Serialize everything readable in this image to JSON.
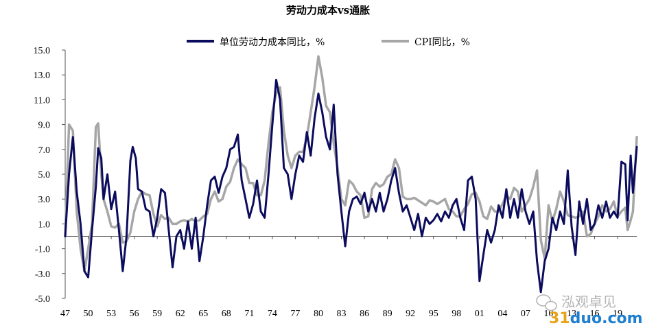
{
  "chart_data": {
    "type": "line",
    "title": "劳动力成本vs通胀",
    "xlabel": "",
    "ylabel": "",
    "ylim": [
      -5.0,
      15.0
    ],
    "yticks": [
      "15.0",
      "13.0",
      "11.0",
      "9.0",
      "7.0",
      "5.0",
      "3.0",
      "1.0",
      "-1.0",
      "-3.0",
      "-5.0"
    ],
    "xlim": [
      1947,
      2021.5
    ],
    "xticks": [
      "47",
      "50",
      "53",
      "56",
      "59",
      "62",
      "65",
      "68",
      "71",
      "74",
      "77",
      "80",
      "83",
      "86",
      "89",
      "92",
      "95",
      "98",
      "01",
      "04",
      "07",
      "10",
      "13",
      "16",
      "19"
    ],
    "legend_position": "top",
    "grid": false,
    "series": [
      {
        "name": "单位劳动力成本同比，%",
        "color": "#0c0c5e",
        "points": [
          [
            1947.0,
            0.0
          ],
          [
            1947.5,
            5.0
          ],
          [
            1948.0,
            8.0
          ],
          [
            1948.5,
            3.6
          ],
          [
            1949.0,
            1.0
          ],
          [
            1949.5,
            -2.8
          ],
          [
            1950.0,
            -3.3
          ],
          [
            1950.5,
            0.5
          ],
          [
            1951.0,
            4.0
          ],
          [
            1951.3,
            7.1
          ],
          [
            1951.7,
            6.3
          ],
          [
            1952.0,
            3.0
          ],
          [
            1952.5,
            5.0
          ],
          [
            1953.0,
            2.2
          ],
          [
            1953.5,
            3.6
          ],
          [
            1954.0,
            0.5
          ],
          [
            1954.5,
            -2.8
          ],
          [
            1955.0,
            0.0
          ],
          [
            1955.5,
            6.1
          ],
          [
            1955.8,
            7.2
          ],
          [
            1956.2,
            6.3
          ],
          [
            1956.5,
            3.8
          ],
          [
            1957.0,
            3.6
          ],
          [
            1957.5,
            2.2
          ],
          [
            1958.0,
            2.0
          ],
          [
            1958.5,
            0.0
          ],
          [
            1959.0,
            1.5
          ],
          [
            1959.5,
            3.8
          ],
          [
            1960.0,
            3.5
          ],
          [
            1960.5,
            0.5
          ],
          [
            1961.0,
            -2.5
          ],
          [
            1961.5,
            0.0
          ],
          [
            1962.0,
            0.5
          ],
          [
            1962.5,
            -1.0
          ],
          [
            1963.0,
            1.2
          ],
          [
            1963.5,
            -1.0
          ],
          [
            1964.0,
            1.5
          ],
          [
            1964.5,
            -2.0
          ],
          [
            1965.0,
            0.0
          ],
          [
            1965.5,
            2.5
          ],
          [
            1966.0,
            4.5
          ],
          [
            1966.5,
            4.8
          ],
          [
            1967.0,
            3.5
          ],
          [
            1967.5,
            4.8
          ],
          [
            1968.0,
            5.5
          ],
          [
            1968.5,
            7.0
          ],
          [
            1969.0,
            7.2
          ],
          [
            1969.5,
            8.2
          ],
          [
            1970.0,
            4.5
          ],
          [
            1970.5,
            3.0
          ],
          [
            1971.0,
            1.5
          ],
          [
            1971.5,
            2.6
          ],
          [
            1972.0,
            4.5
          ],
          [
            1972.5,
            2.0
          ],
          [
            1973.0,
            1.5
          ],
          [
            1973.5,
            5.0
          ],
          [
            1974.0,
            9.0
          ],
          [
            1974.5,
            12.6
          ],
          [
            1975.0,
            11.0
          ],
          [
            1975.5,
            5.5
          ],
          [
            1976.0,
            5.0
          ],
          [
            1976.5,
            3.0
          ],
          [
            1977.0,
            5.0
          ],
          [
            1977.5,
            6.5
          ],
          [
            1978.0,
            6.0
          ],
          [
            1978.5,
            8.4
          ],
          [
            1979.0,
            6.5
          ],
          [
            1979.5,
            9.5
          ],
          [
            1980.0,
            11.5
          ],
          [
            1980.5,
            10.0
          ],
          [
            1981.0,
            8.0
          ],
          [
            1981.5,
            7.0
          ],
          [
            1982.0,
            10.6
          ],
          [
            1982.5,
            5.0
          ],
          [
            1983.0,
            2.0
          ],
          [
            1983.5,
            -0.8
          ],
          [
            1984.0,
            2.0
          ],
          [
            1984.5,
            3.0
          ],
          [
            1985.0,
            3.2
          ],
          [
            1985.5,
            2.6
          ],
          [
            1986.0,
            3.5
          ],
          [
            1986.5,
            2.0
          ],
          [
            1987.0,
            3.0
          ],
          [
            1987.5,
            2.0
          ],
          [
            1988.0,
            3.5
          ],
          [
            1988.5,
            2.0
          ],
          [
            1989.0,
            3.0
          ],
          [
            1989.5,
            4.5
          ],
          [
            1990.0,
            5.5
          ],
          [
            1990.5,
            3.5
          ],
          [
            1991.0,
            2.0
          ],
          [
            1991.5,
            2.5
          ],
          [
            1992.0,
            1.5
          ],
          [
            1992.5,
            0.5
          ],
          [
            1993.0,
            1.8
          ],
          [
            1993.5,
            0.0
          ],
          [
            1994.0,
            1.5
          ],
          [
            1994.5,
            1.0
          ],
          [
            1995.0,
            1.3
          ],
          [
            1995.5,
            1.8
          ],
          [
            1996.0,
            1.2
          ],
          [
            1996.5,
            2.0
          ],
          [
            1997.0,
            1.5
          ],
          [
            1997.5,
            2.5
          ],
          [
            1998.0,
            3.0
          ],
          [
            1998.5,
            1.5
          ],
          [
            1999.0,
            0.5
          ],
          [
            1999.5,
            4.5
          ],
          [
            2000.0,
            4.8
          ],
          [
            2000.5,
            3.0
          ],
          [
            2001.0,
            -3.6
          ],
          [
            2001.5,
            -1.5
          ],
          [
            2002.0,
            0.5
          ],
          [
            2002.5,
            -0.5
          ],
          [
            2003.0,
            0.5
          ],
          [
            2003.5,
            2.5
          ],
          [
            2004.0,
            1.5
          ],
          [
            2004.5,
            3.8
          ],
          [
            2005.0,
            1.5
          ],
          [
            2005.5,
            3.0
          ],
          [
            2006.0,
            1.5
          ],
          [
            2006.5,
            3.8
          ],
          [
            2007.0,
            2.0
          ],
          [
            2007.5,
            1.0
          ],
          [
            2008.0,
            2.0
          ],
          [
            2008.5,
            -2.0
          ],
          [
            2009.0,
            -4.5
          ],
          [
            2009.5,
            -2.0
          ],
          [
            2010.0,
            -1.0
          ],
          [
            2010.5,
            1.5
          ],
          [
            2011.0,
            0.5
          ],
          [
            2011.5,
            2.0
          ],
          [
            2012.0,
            1.0
          ],
          [
            2012.5,
            5.3
          ],
          [
            2013.0,
            0.8
          ],
          [
            2013.5,
            -1.5
          ],
          [
            2014.0,
            2.8
          ],
          [
            2014.5,
            1.0
          ],
          [
            2015.0,
            3.0
          ],
          [
            2015.5,
            0.5
          ],
          [
            2016.0,
            1.0
          ],
          [
            2016.5,
            2.5
          ],
          [
            2017.0,
            1.5
          ],
          [
            2017.5,
            2.8
          ],
          [
            2018.0,
            1.5
          ],
          [
            2018.5,
            2.0
          ],
          [
            2019.0,
            1.5
          ],
          [
            2019.5,
            6.0
          ],
          [
            2020.0,
            5.8
          ],
          [
            2020.3,
            1.3
          ],
          [
            2020.7,
            6.5
          ],
          [
            2021.0,
            3.5
          ],
          [
            2021.5,
            7.2
          ]
        ]
      },
      {
        "name": "CPI同比，%",
        "color": "#a6a6a6",
        "points": [
          [
            1947.0,
            0.0
          ],
          [
            1947.5,
            9.0
          ],
          [
            1948.0,
            8.5
          ],
          [
            1948.5,
            2.0
          ],
          [
            1949.0,
            -1.0
          ],
          [
            1949.5,
            -2.8
          ],
          [
            1950.0,
            -1.0
          ],
          [
            1950.5,
            1.0
          ],
          [
            1951.0,
            8.8
          ],
          [
            1951.3,
            9.1
          ],
          [
            1951.7,
            5.0
          ],
          [
            1952.0,
            3.0
          ],
          [
            1952.5,
            2.0
          ],
          [
            1953.0,
            0.8
          ],
          [
            1953.5,
            0.7
          ],
          [
            1954.0,
            1.0
          ],
          [
            1954.5,
            -0.5
          ],
          [
            1955.0,
            -0.4
          ],
          [
            1955.5,
            0.3
          ],
          [
            1956.0,
            2.0
          ],
          [
            1956.5,
            3.0
          ],
          [
            1957.0,
            3.6
          ],
          [
            1957.5,
            3.4
          ],
          [
            1958.0,
            3.3
          ],
          [
            1958.5,
            1.8
          ],
          [
            1959.0,
            0.8
          ],
          [
            1959.5,
            1.7
          ],
          [
            1960.0,
            1.4
          ],
          [
            1960.5,
            1.5
          ],
          [
            1961.0,
            1.0
          ],
          [
            1961.5,
            1.0
          ],
          [
            1962.0,
            1.2
          ],
          [
            1962.5,
            1.3
          ],
          [
            1963.0,
            1.2
          ],
          [
            1963.5,
            1.4
          ],
          [
            1964.0,
            1.2
          ],
          [
            1964.5,
            1.3
          ],
          [
            1965.0,
            1.6
          ],
          [
            1965.5,
            1.8
          ],
          [
            1966.0,
            3.0
          ],
          [
            1966.5,
            3.6
          ],
          [
            1967.0,
            2.8
          ],
          [
            1967.5,
            3.0
          ],
          [
            1968.0,
            4.0
          ],
          [
            1968.5,
            4.4
          ],
          [
            1969.0,
            5.5
          ],
          [
            1969.5,
            6.2
          ],
          [
            1970.0,
            5.8
          ],
          [
            1970.5,
            5.5
          ],
          [
            1971.0,
            4.3
          ],
          [
            1971.5,
            4.3
          ],
          [
            1972.0,
            3.3
          ],
          [
            1972.5,
            3.3
          ],
          [
            1973.0,
            4.5
          ],
          [
            1973.5,
            7.5
          ],
          [
            1974.0,
            10.0
          ],
          [
            1974.5,
            11.5
          ],
          [
            1975.0,
            12.0
          ],
          [
            1975.5,
            8.5
          ],
          [
            1976.0,
            6.5
          ],
          [
            1976.5,
            5.5
          ],
          [
            1977.0,
            6.5
          ],
          [
            1977.5,
            6.8
          ],
          [
            1978.0,
            6.8
          ],
          [
            1978.5,
            8.0
          ],
          [
            1979.0,
            10.0
          ],
          [
            1979.5,
            12.0
          ],
          [
            1980.0,
            14.5
          ],
          [
            1980.5,
            12.8
          ],
          [
            1981.0,
            10.5
          ],
          [
            1981.5,
            10.0
          ],
          [
            1982.0,
            7.5
          ],
          [
            1982.5,
            5.5
          ],
          [
            1983.0,
            3.0
          ],
          [
            1983.5,
            2.5
          ],
          [
            1984.0,
            4.5
          ],
          [
            1984.5,
            4.2
          ],
          [
            1985.0,
            3.6
          ],
          [
            1985.5,
            3.3
          ],
          [
            1986.0,
            1.5
          ],
          [
            1986.5,
            1.6
          ],
          [
            1987.0,
            3.8
          ],
          [
            1987.5,
            4.3
          ],
          [
            1988.0,
            4.0
          ],
          [
            1988.5,
            4.2
          ],
          [
            1989.0,
            4.8
          ],
          [
            1989.5,
            5.0
          ],
          [
            1990.0,
            6.2
          ],
          [
            1990.5,
            5.5
          ],
          [
            1991.0,
            3.2
          ],
          [
            1991.5,
            3.0
          ],
          [
            1992.0,
            3.0
          ],
          [
            1992.5,
            3.1
          ],
          [
            1993.0,
            2.9
          ],
          [
            1993.5,
            2.7
          ],
          [
            1994.0,
            2.5
          ],
          [
            1994.5,
            2.9
          ],
          [
            1995.0,
            2.8
          ],
          [
            1995.5,
            2.6
          ],
          [
            1996.0,
            2.8
          ],
          [
            1996.5,
            3.0
          ],
          [
            1997.0,
            2.2
          ],
          [
            1997.5,
            2.0
          ],
          [
            1998.0,
            1.6
          ],
          [
            1998.5,
            1.6
          ],
          [
            1999.0,
            2.2
          ],
          [
            1999.5,
            2.6
          ],
          [
            2000.0,
            3.4
          ],
          [
            2000.5,
            3.5
          ],
          [
            2001.0,
            2.8
          ],
          [
            2001.5,
            1.6
          ],
          [
            2002.0,
            1.4
          ],
          [
            2002.5,
            2.4
          ],
          [
            2003.0,
            2.0
          ],
          [
            2003.5,
            2.0
          ],
          [
            2004.0,
            2.6
          ],
          [
            2004.5,
            3.3
          ],
          [
            2005.0,
            3.0
          ],
          [
            2005.5,
            3.9
          ],
          [
            2006.0,
            3.6
          ],
          [
            2006.5,
            2.0
          ],
          [
            2007.0,
            2.5
          ],
          [
            2007.5,
            3.0
          ],
          [
            2008.0,
            4.0
          ],
          [
            2008.5,
            5.3
          ],
          [
            2009.0,
            -0.3
          ],
          [
            2009.5,
            -1.8
          ],
          [
            2010.0,
            2.5
          ],
          [
            2010.5,
            1.2
          ],
          [
            2011.0,
            2.2
          ],
          [
            2011.5,
            3.6
          ],
          [
            2012.0,
            2.8
          ],
          [
            2012.5,
            1.7
          ],
          [
            2013.0,
            1.6
          ],
          [
            2013.5,
            1.5
          ],
          [
            2014.0,
            1.6
          ],
          [
            2014.5,
            2.0
          ],
          [
            2015.0,
            0.0
          ],
          [
            2015.5,
            0.2
          ],
          [
            2016.0,
            1.0
          ],
          [
            2016.5,
            1.6
          ],
          [
            2017.0,
            2.5
          ],
          [
            2017.5,
            2.0
          ],
          [
            2018.0,
            2.2
          ],
          [
            2018.5,
            2.8
          ],
          [
            2019.0,
            1.6
          ],
          [
            2019.5,
            2.0
          ],
          [
            2020.0,
            2.3
          ],
          [
            2020.3,
            0.5
          ],
          [
            2020.7,
            1.3
          ],
          [
            2021.0,
            2.0
          ],
          [
            2021.5,
            8.0
          ]
        ]
      }
    ]
  },
  "watermark": {
    "text": "泓观卓见",
    "url_part1": "31",
    "url_part2": "duo",
    "url_part3": ".com",
    "icon": "wechat-icon"
  }
}
